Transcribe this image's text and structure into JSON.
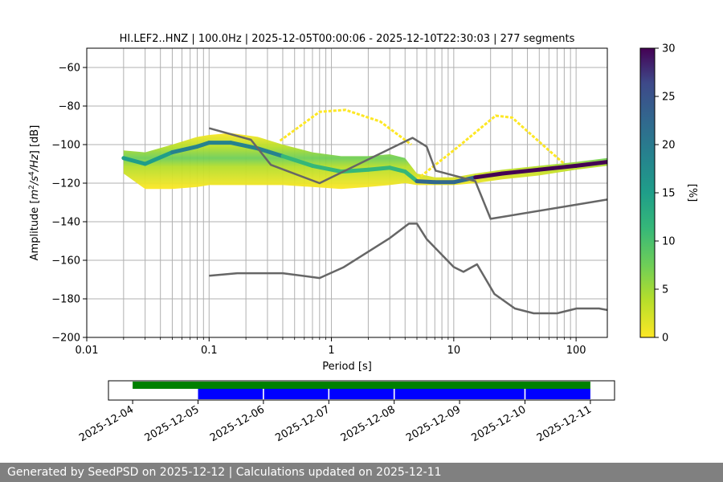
{
  "footer": {
    "text": "Generated by SeedPSD on 2025-12-12 | Calculations updated on 2025-12-11"
  },
  "chart_data": [
    {
      "type": "heatmap",
      "title": "HI.LEF2..HNZ | 100.0Hz | 2025-12-05T00:00:06 - 2025-12-10T22:30:03 | 277 segments",
      "xlabel": "Period [s]",
      "ylabel": "Amplitude [$m^2/s^4/Hz$] [dB]",
      "ylabel_parts": {
        "prefix": "Amplitude [",
        "m": "m",
        "sup2": "2",
        "slash_s": "/s",
        "sup4": "4",
        "hz": "/Hz",
        "suffix": "] [dB]"
      },
      "x_scale": "log",
      "xlim": [
        0.01,
        180
      ],
      "ylim": [
        -200,
        -50
      ],
      "x_ticks": [
        0.01,
        0.1,
        1,
        10,
        100
      ],
      "x_tick_labels": [
        "0.01",
        "0.1",
        "1",
        "10",
        "100"
      ],
      "y_ticks": [
        -200,
        -180,
        -160,
        -140,
        -120,
        -100,
        -80,
        -60
      ],
      "y_tick_labels": [
        "−200",
        "−180",
        "−160",
        "−140",
        "−120",
        "−100",
        "−80",
        "−60"
      ],
      "grid": true,
      "colormap": "viridis_r",
      "colorbar": {
        "label": "[%]",
        "range": [
          0,
          30
        ],
        "ticks": [
          0,
          5,
          10,
          15,
          20,
          25,
          30
        ],
        "tick_labels": [
          "0",
          "5",
          "10",
          "15",
          "20",
          "25",
          "30"
        ]
      },
      "noise_models": [
        {
          "name": "NHNM",
          "color": "#666666",
          "points": [
            [
              0.1,
              -91.5
            ],
            [
              0.22,
              -97.5
            ],
            [
              0.32,
              -110.5
            ],
            [
              0.8,
              -120
            ],
            [
              4.6,
              -96.5
            ],
            [
              6,
              -101
            ],
            [
              7.1,
              -113.5
            ],
            [
              15,
              -119
            ],
            [
              20,
              -138.5
            ],
            [
              180,
              -128.5
            ]
          ]
        },
        {
          "name": "NLNM",
          "color": "#666666",
          "points": [
            [
              0.1,
              -168
            ],
            [
              0.17,
              -166.7
            ],
            [
              0.4,
              -166.7
            ],
            [
              0.8,
              -169.2
            ],
            [
              1.25,
              -163.7
            ],
            [
              3,
              -148.5
            ],
            [
              4.3,
              -141
            ],
            [
              5,
              -141
            ],
            [
              6,
              -149
            ],
            [
              10,
              -163.5
            ],
            [
              12,
              -166
            ],
            [
              15.5,
              -162.1
            ],
            [
              21.5,
              -177.5
            ],
            [
              31.6,
              -185
            ],
            [
              45,
              -187.5
            ],
            [
              70,
              -187.5
            ],
            [
              101,
              -185
            ],
            [
              154,
              -185
            ],
            [
              180,
              -185.8
            ]
          ]
        }
      ],
      "psd_mode": {
        "description_series": "mode",
        "points": [
          [
            0.02,
            -107
          ],
          [
            0.03,
            -110
          ],
          [
            0.05,
            -104
          ],
          [
            0.08,
            -101
          ],
          [
            0.1,
            -99
          ],
          [
            0.15,
            -99
          ],
          [
            0.25,
            -102
          ],
          [
            0.4,
            -106
          ],
          [
            0.7,
            -111
          ],
          [
            1.2,
            -114
          ],
          [
            2,
            -113
          ],
          [
            3,
            -112
          ],
          [
            4,
            -114
          ],
          [
            5,
            -119
          ],
          [
            7,
            -119.5
          ],
          [
            10,
            -119.5
          ],
          [
            15,
            -117
          ],
          [
            25,
            -115
          ],
          [
            50,
            -113
          ],
          [
            100,
            -111
          ],
          [
            180,
            -109
          ]
        ],
        "peak_percent": 30
      },
      "psd_band": {
        "upper": [
          [
            0.02,
            -103
          ],
          [
            0.03,
            -104
          ],
          [
            0.05,
            -100
          ],
          [
            0.08,
            -96
          ],
          [
            0.1,
            -95
          ],
          [
            0.15,
            -94
          ],
          [
            0.25,
            -96
          ],
          [
            0.4,
            -100
          ],
          [
            0.7,
            -104
          ],
          [
            1.2,
            -106
          ],
          [
            2,
            -106
          ],
          [
            3,
            -105
          ],
          [
            4,
            -107
          ],
          [
            5,
            -115
          ],
          [
            7,
            -117
          ],
          [
            10,
            -117
          ],
          [
            15,
            -115
          ],
          [
            25,
            -113
          ],
          [
            50,
            -111
          ],
          [
            100,
            -109
          ],
          [
            180,
            -107
          ]
        ],
        "lower": [
          [
            0.02,
            -115
          ],
          [
            0.03,
            -123
          ],
          [
            0.05,
            -123
          ],
          [
            0.08,
            -122
          ],
          [
            0.1,
            -121
          ],
          [
            0.15,
            -121
          ],
          [
            0.25,
            -121
          ],
          [
            0.4,
            -121
          ],
          [
            0.7,
            -122
          ],
          [
            1.2,
            -123
          ],
          [
            2,
            -122
          ],
          [
            3,
            -121
          ],
          [
            4,
            -120
          ],
          [
            5,
            -121
          ],
          [
            7,
            -121
          ],
          [
            10,
            -121
          ],
          [
            15,
            -120
          ],
          [
            25,
            -118
          ],
          [
            50,
            -116
          ],
          [
            100,
            -113
          ],
          [
            180,
            -111
          ]
        ]
      },
      "psd_outlier_arches": [
        {
          "points": [
            [
              0.38,
              -98
            ],
            [
              0.8,
              -83
            ],
            [
              1.3,
              -82
            ],
            [
              2.5,
              -88
            ],
            [
              4.5,
              -100
            ]
          ]
        },
        {
          "points": [
            [
              5,
              -118
            ],
            [
              10,
              -103
            ],
            [
              22,
              -85
            ],
            [
              30,
              -86
            ],
            [
              60,
              -103
            ],
            [
              80,
              -110
            ]
          ]
        }
      ]
    },
    {
      "type": "timeline",
      "x_ticks": [
        "2025-12-04",
        "2025-12-05",
        "2025-12-06",
        "2025-12-07",
        "2025-12-08",
        "2025-12-09",
        "2025-12-10",
        "2025-12-11"
      ],
      "range_days": [
        -0.37,
        7.37
      ],
      "green_bar": {
        "start_day": 0,
        "end_day": 7,
        "color": "#008000"
      },
      "blue_segments": [
        {
          "start_day": 1,
          "end_day": 1.99
        },
        {
          "start_day": 2.01,
          "end_day": 2.99
        },
        {
          "start_day": 3.01,
          "end_day": 3.99
        },
        {
          "start_day": 4.01,
          "end_day": 5.99
        },
        {
          "start_day": 6.01,
          "end_day": 7
        }
      ],
      "blue_color": "#0000ff"
    }
  ]
}
